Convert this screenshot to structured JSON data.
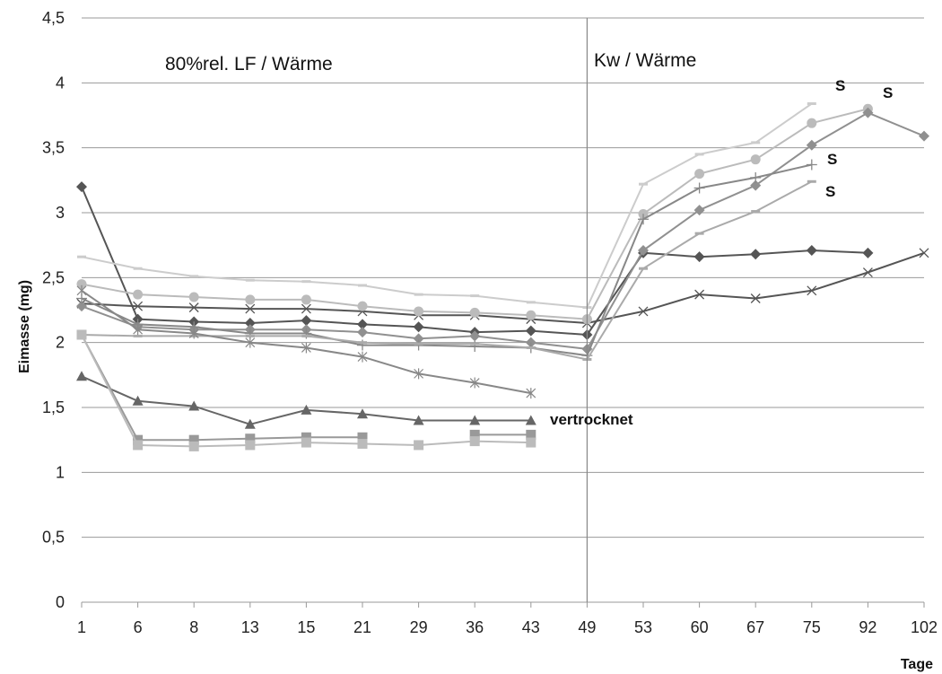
{
  "chart_data": {
    "type": "line",
    "xlabel": "Tage",
    "ylabel": "Eimasse (mg)",
    "categories": [
      "1",
      "6",
      "8",
      "13",
      "15",
      "21",
      "29",
      "36",
      "43",
      "49",
      "53",
      "60",
      "67",
      "75",
      "92",
      "102"
    ],
    "ylim": [
      0,
      4.5
    ],
    "yticks": [
      "0",
      "0,5",
      "1",
      "1,5",
      "2",
      "2,5",
      "3",
      "3,5",
      "4",
      "4,5"
    ],
    "grid": true,
    "annotations": {
      "region_left": "80%rel. LF / Wärme",
      "region_right": "Kw / Wärme",
      "vertrocknet": "vertrocknet",
      "s_labels": [
        "S",
        "S",
        "S",
        "S"
      ]
    },
    "series": [
      {
        "color": "#555555",
        "marker": "diamond",
        "values": [
          3.2,
          2.18,
          2.16,
          2.15,
          2.17,
          2.14,
          2.12,
          2.08,
          2.09,
          2.06,
          2.69,
          2.66,
          2.68,
          2.71,
          2.69,
          null
        ]
      },
      {
        "color": "#555555",
        "marker": "x",
        "values": [
          2.3,
          2.28,
          2.27,
          2.26,
          2.26,
          2.24,
          2.21,
          2.21,
          2.18,
          2.15,
          2.24,
          2.37,
          2.34,
          2.4,
          2.54,
          2.69
        ]
      },
      {
        "color": "#cccccc",
        "marker": "dash",
        "values": [
          2.66,
          2.57,
          2.51,
          2.48,
          2.47,
          2.44,
          2.37,
          2.36,
          2.31,
          2.27,
          3.22,
          3.45,
          3.54,
          3.84,
          null,
          null
        ]
      },
      {
        "color": "#bbbbbb",
        "marker": "circle",
        "values": [
          2.45,
          2.37,
          2.35,
          2.33,
          2.33,
          2.28,
          2.24,
          2.23,
          2.21,
          2.18,
          2.99,
          3.3,
          3.41,
          3.69,
          3.8,
          null
        ]
      },
      {
        "color": "#909090",
        "marker": "diamond",
        "values": [
          2.28,
          2.12,
          2.1,
          2.1,
          2.1,
          2.08,
          2.03,
          2.05,
          2.0,
          1.95,
          2.71,
          3.02,
          3.21,
          3.52,
          3.77,
          3.59
        ]
      },
      {
        "color": "#888888",
        "marker": "plus",
        "values": [
          2.34,
          2.14,
          2.12,
          2.07,
          2.07,
          1.98,
          1.98,
          1.97,
          1.96,
          1.9,
          2.95,
          3.19,
          3.27,
          3.37,
          null,
          null
        ]
      },
      {
        "color": "#aaaaaa",
        "marker": "dash",
        "values": [
          2.06,
          2.05,
          2.05,
          2.05,
          2.05,
          2.0,
          1.99,
          1.99,
          1.96,
          1.87,
          2.57,
          2.84,
          3.01,
          3.24,
          null,
          null
        ]
      },
      {
        "color": "#888888",
        "marker": "asterisk",
        "values": [
          2.4,
          2.1,
          2.07,
          2.0,
          1.96,
          1.89,
          1.76,
          1.69,
          1.61,
          null,
          null,
          null,
          null,
          null,
          null,
          null
        ]
      },
      {
        "color": "#666666",
        "marker": "triangle",
        "values": [
          1.74,
          1.55,
          1.51,
          1.37,
          1.48,
          1.45,
          1.4,
          1.4,
          1.4,
          null,
          null,
          null,
          null,
          null,
          null,
          null
        ]
      },
      {
        "color": "#999999",
        "marker": "square",
        "values": [
          2.06,
          1.25,
          1.25,
          1.26,
          1.27,
          1.27,
          null,
          1.29,
          1.29,
          null,
          null,
          null,
          null,
          null,
          null,
          null
        ]
      },
      {
        "color": "#bbbbbb",
        "marker": "square",
        "values": [
          2.06,
          1.21,
          1.2,
          1.21,
          1.23,
          1.22,
          1.21,
          1.24,
          1.23,
          null,
          null,
          null,
          null,
          null,
          null,
          null
        ]
      }
    ]
  }
}
